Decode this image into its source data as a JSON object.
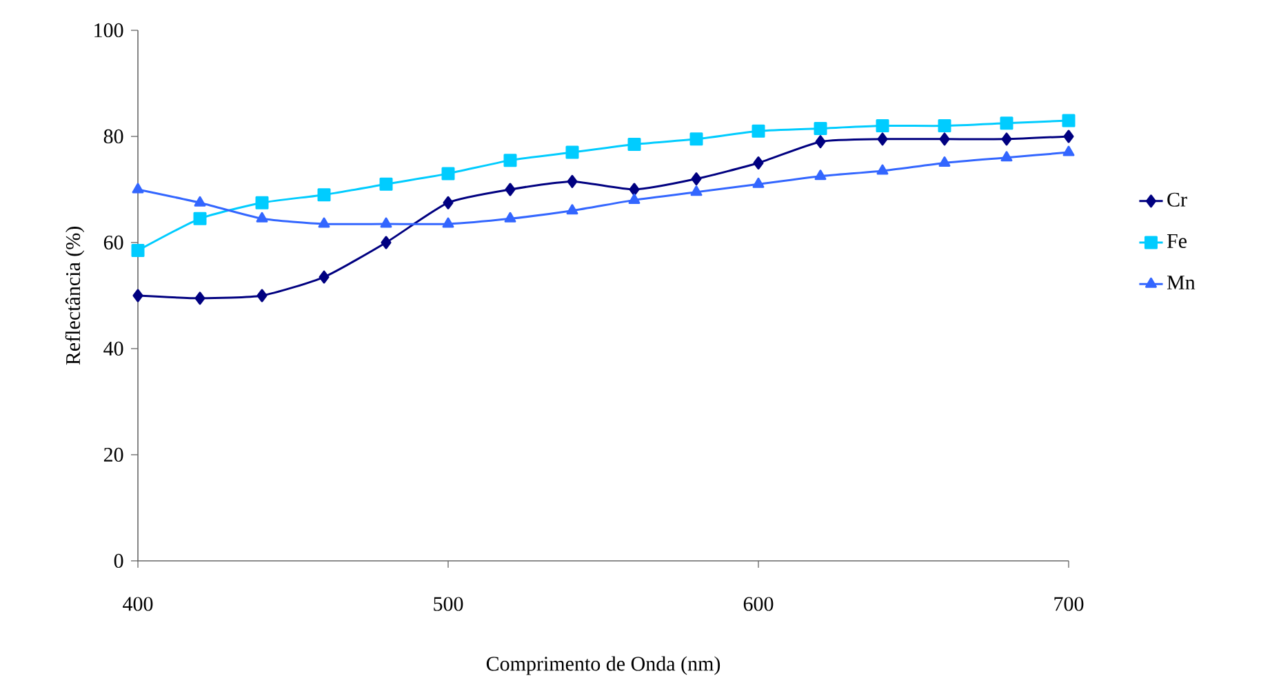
{
  "chart_data": {
    "type": "line",
    "xlabel": "Comprimento de Onda (nm)",
    "ylabel": "Reflectância (%)",
    "x": [
      400,
      420,
      440,
      460,
      480,
      500,
      520,
      540,
      560,
      580,
      600,
      620,
      640,
      660,
      680,
      700
    ],
    "series": [
      {
        "name": "Cr",
        "color": "#000080",
        "marker": "diamond",
        "values": [
          50,
          49.5,
          50,
          53.5,
          60,
          67.5,
          70,
          71.5,
          70,
          72,
          75,
          79,
          79.5,
          79.5,
          79.5,
          80
        ]
      },
      {
        "name": "Fe",
        "color": "#00ccff",
        "marker": "square",
        "values": [
          58.5,
          64.5,
          67.5,
          69,
          71,
          73,
          75.5,
          77,
          78.5,
          79.5,
          81,
          81.5,
          82,
          82,
          82.5,
          83
        ]
      },
      {
        "name": "Mn",
        "color": "#3366ff",
        "marker": "triangle",
        "values": [
          70,
          67.5,
          64.5,
          63.5,
          63.5,
          63.5,
          64.5,
          66,
          68,
          69.5,
          71,
          72.5,
          73.5,
          75,
          76,
          77
        ]
      }
    ],
    "xlim": [
      400,
      700
    ],
    "xticks": [
      400,
      500,
      600,
      700
    ],
    "ylim": [
      0,
      100
    ],
    "yticks": [
      0,
      20,
      40,
      60,
      80,
      100
    ],
    "grid": false,
    "legend": "right",
    "line_style": "solid"
  }
}
